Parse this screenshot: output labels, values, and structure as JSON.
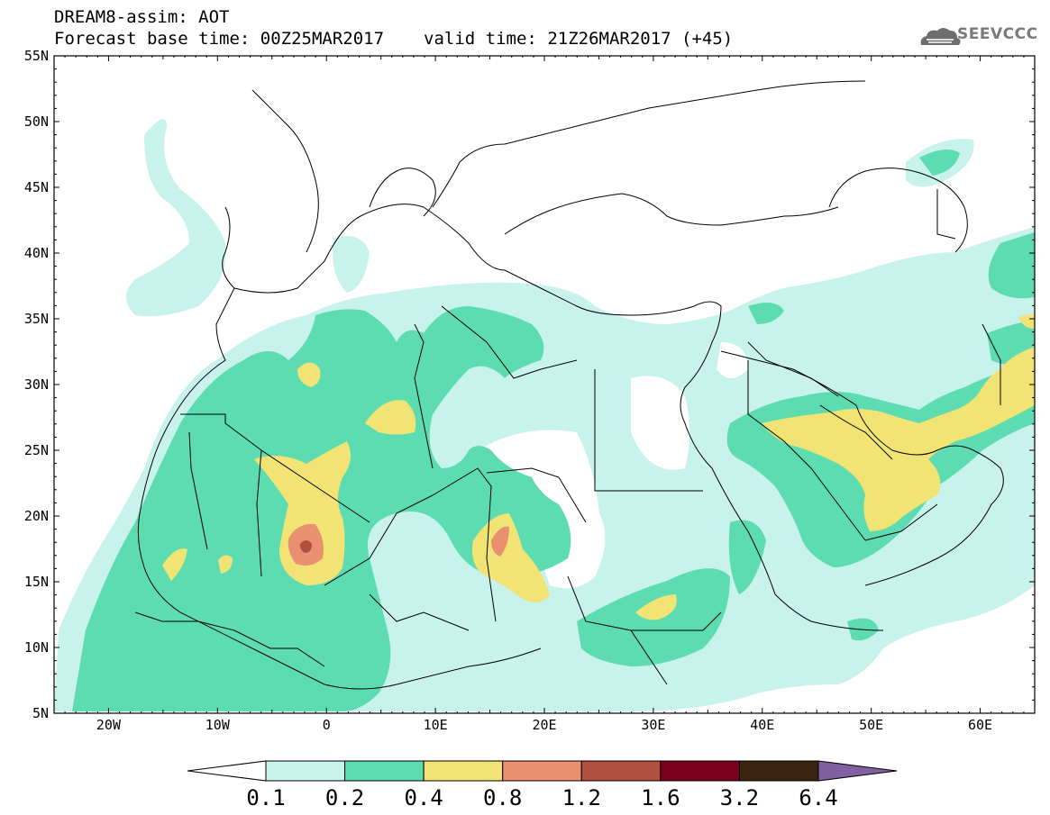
{
  "header": {
    "title": "DREAM8-assim: AOT",
    "base_time": "Forecast base time: 00Z25MAR2017",
    "valid_time": "valid time: 21Z26MAR2017 (+45)"
  },
  "logo": {
    "text": "SEEVCCC",
    "icon": "cloud-icon"
  },
  "axes": {
    "lat_labels": [
      "55N",
      "50N",
      "45N",
      "40N",
      "35N",
      "30N",
      "25N",
      "20N",
      "15N",
      "10N",
      "5N"
    ],
    "lon_labels": [
      "20W",
      "10W",
      "0",
      "10E",
      "20E",
      "30E",
      "40E",
      "50E",
      "60E"
    ],
    "lon_range": [
      -25,
      65
    ],
    "lat_range": [
      5,
      55
    ]
  },
  "colorbar": {
    "labels": [
      "0.1",
      "0.2",
      "0.4",
      "0.8",
      "1.2",
      "1.6",
      "3.2",
      "6.4"
    ],
    "colors": [
      "#ffffff",
      "#c8f2ec",
      "#5cdcb0",
      "#f2e474",
      "#e89070",
      "#b05040",
      "#7a0020",
      "#3a2410",
      "#8060a0"
    ]
  },
  "colors": {
    "level_0_1": "#c8f2ec",
    "level_0_2": "#5cdcb0",
    "level_0_4": "#f2e474",
    "level_0_8": "#e89070",
    "level_1_2": "#b05040",
    "borders": "#000000"
  }
}
